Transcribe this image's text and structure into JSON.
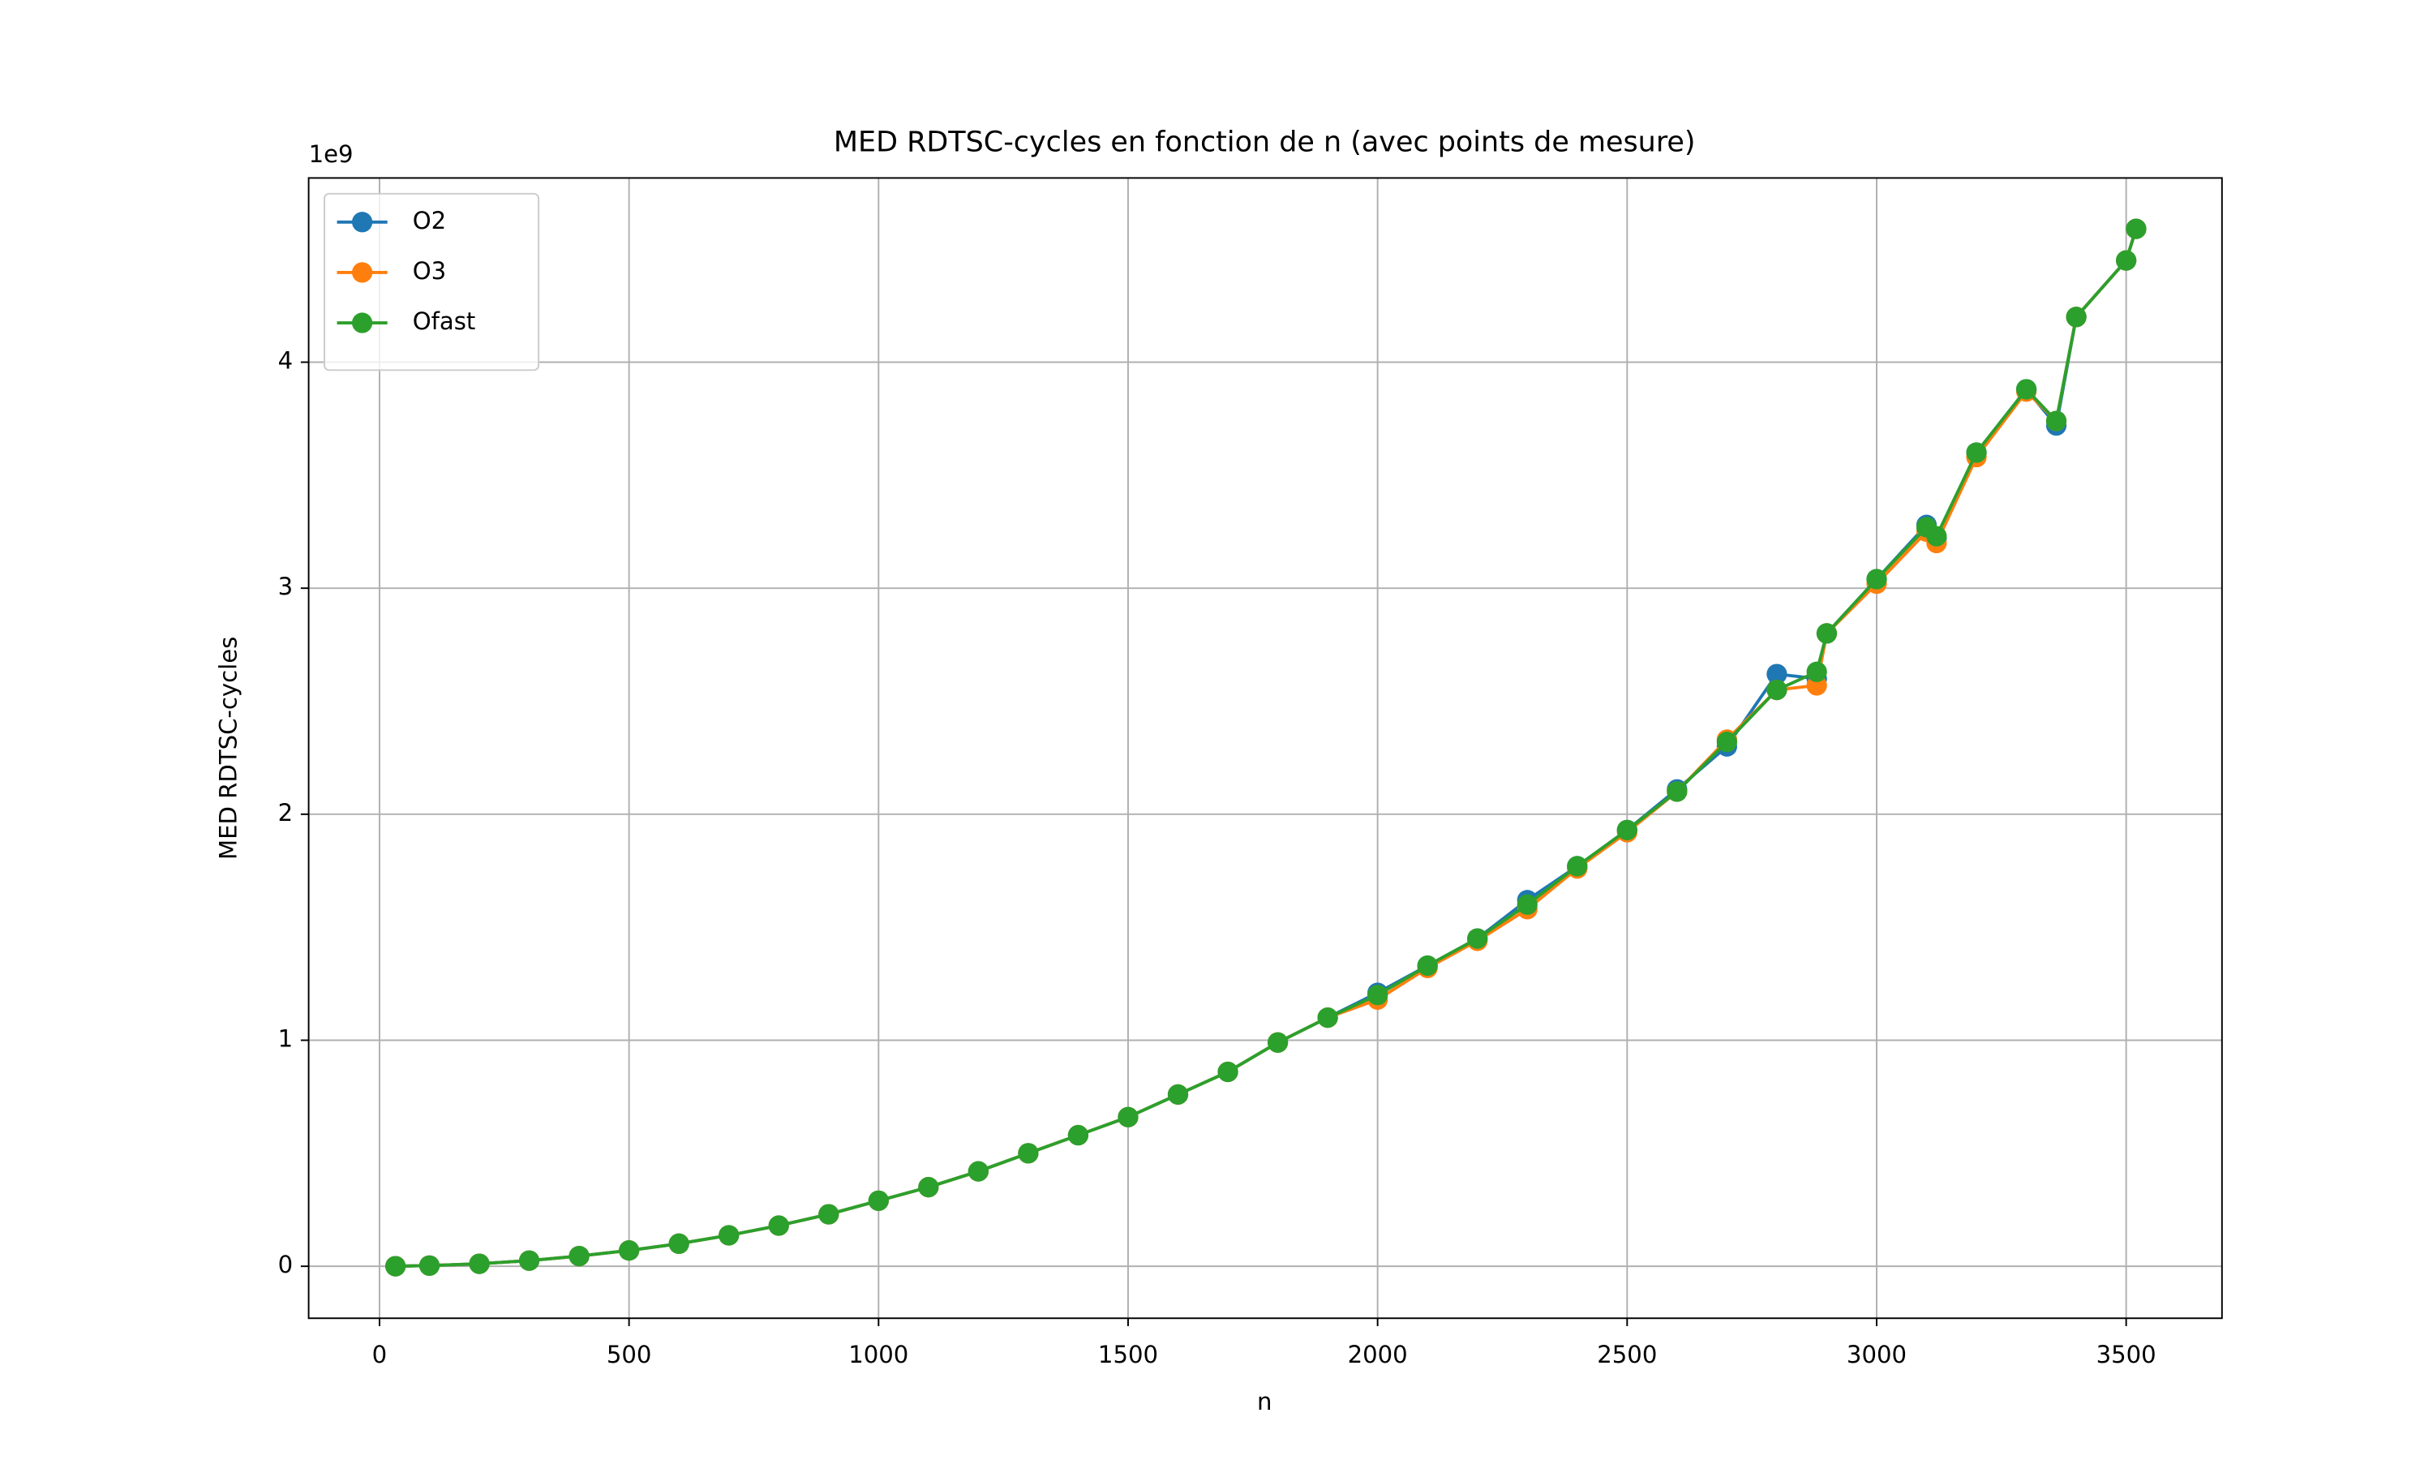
{
  "chart_data": {
    "type": "line",
    "title": "MED RDTSC-cycles en fonction de n (avec points de mesure)",
    "x_label": "n",
    "y_label": "MED RDTSC-cycles",
    "y_offset_label": "1e9",
    "x": [
      32,
      100,
      200,
      300,
      400,
      500,
      600,
      700,
      800,
      900,
      1000,
      1100,
      1200,
      1300,
      1400,
      1500,
      1600,
      1700,
      1800,
      1900,
      2000,
      2100,
      2200,
      2300,
      2400,
      2500,
      2600,
      2700,
      2800,
      2880,
      2900,
      3000,
      3100,
      3120,
      3200,
      3300,
      3360,
      3400,
      3500,
      3520
    ],
    "series": [
      {
        "name": "O2",
        "color": "#1f77b4",
        "values": [
          0.0003,
          0.003,
          0.011,
          0.025,
          0.045,
          0.07,
          0.1,
          0.137,
          0.18,
          0.23,
          0.29,
          0.35,
          0.42,
          0.5,
          0.58,
          0.66,
          0.76,
          0.86,
          0.99,
          1.1,
          1.21,
          1.33,
          1.45,
          1.62,
          1.77,
          1.93,
          2.11,
          2.3,
          2.62,
          2.6,
          2.8,
          3.04,
          3.28,
          3.22,
          3.6,
          3.88,
          3.72,
          4.2,
          4.45,
          4.59
        ]
      },
      {
        "name": "O3",
        "color": "#ff7f0e",
        "values": [
          0.0003,
          0.003,
          0.011,
          0.025,
          0.045,
          0.07,
          0.1,
          0.137,
          0.18,
          0.23,
          0.29,
          0.35,
          0.42,
          0.5,
          0.58,
          0.66,
          0.76,
          0.86,
          0.99,
          1.1,
          1.18,
          1.32,
          1.44,
          1.58,
          1.76,
          1.92,
          2.1,
          2.33,
          2.55,
          2.57,
          2.8,
          3.02,
          3.25,
          3.2,
          3.58,
          3.87,
          3.74,
          4.2,
          4.45,
          4.59
        ]
      },
      {
        "name": "Ofast",
        "color": "#2ca02c",
        "values": [
          0.0003,
          0.003,
          0.011,
          0.025,
          0.045,
          0.07,
          0.1,
          0.137,
          0.18,
          0.23,
          0.29,
          0.35,
          0.42,
          0.5,
          0.58,
          0.66,
          0.76,
          0.86,
          0.99,
          1.1,
          1.2,
          1.33,
          1.45,
          1.6,
          1.77,
          1.93,
          2.1,
          2.32,
          2.55,
          2.63,
          2.8,
          3.04,
          3.27,
          3.23,
          3.6,
          3.88,
          3.74,
          4.2,
          4.45,
          4.59
        ]
      }
    ],
    "xlim": [
      -142,
      3692
    ],
    "ylim": [
      -0.23,
      4.815
    ],
    "xticks": [
      0,
      500,
      1000,
      1500,
      2000,
      2500,
      3000,
      3500
    ],
    "yticks": [
      0,
      1,
      2,
      3,
      4
    ],
    "grid": true,
    "legend": "upper-left",
    "markers": true
  }
}
